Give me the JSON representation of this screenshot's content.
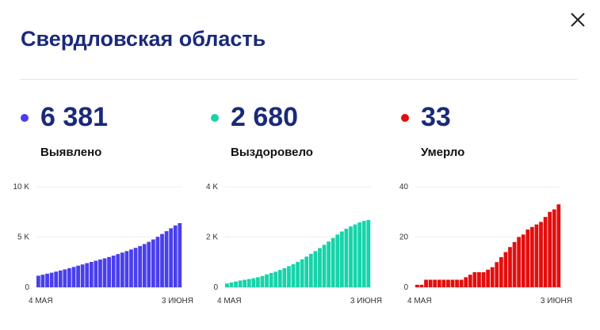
{
  "header": {
    "title": "Свердловская область"
  },
  "colors": {
    "detected": "#4a3fec",
    "recovered": "#16d3aa",
    "deaths": "#e30e0e",
    "title": "#1a2a7a"
  },
  "icons": {
    "close": "close-icon"
  },
  "stats": [
    {
      "value": "6 381",
      "label": "Выявлено",
      "color": "#4a3fec"
    },
    {
      "value": "2 680",
      "label": "Выздоровело",
      "color": "#16d3aa"
    },
    {
      "value": "33",
      "label": "Умерло",
      "color": "#e30e0e"
    }
  ],
  "chart_data": [
    {
      "type": "bar",
      "series_key": "detected",
      "color": "#4a3fec",
      "ylim": [
        0,
        10000
      ],
      "yticks": [
        {
          "v": 0,
          "label": "0"
        },
        {
          "v": 5000,
          "label": "5 K"
        },
        {
          "v": 10000,
          "label": "10 K"
        }
      ],
      "x_start_label": "4 МАЯ",
      "x_end_label": "3 ИЮНЯ",
      "values": [
        1150,
        1250,
        1350,
        1450,
        1560,
        1670,
        1780,
        1900,
        2020,
        2150,
        2270,
        2400,
        2520,
        2640,
        2760,
        2880,
        3010,
        3150,
        3300,
        3450,
        3600,
        3760,
        3920,
        4100,
        4300,
        4520,
        4760,
        5020,
        5300,
        5580,
        5870,
        6150,
        6381
      ]
    },
    {
      "type": "bar",
      "series_key": "recovered",
      "color": "#16d3aa",
      "ylim": [
        0,
        4000
      ],
      "yticks": [
        {
          "v": 0,
          "label": "0"
        },
        {
          "v": 2000,
          "label": "2 K"
        },
        {
          "v": 4000,
          "label": "4 K"
        }
      ],
      "x_start_label": "4 МАЯ",
      "x_end_label": "3 ИЮНЯ",
      "values": [
        150,
        190,
        230,
        270,
        300,
        330,
        360,
        400,
        450,
        510,
        570,
        620,
        690,
        760,
        840,
        920,
        1010,
        1110,
        1220,
        1330,
        1440,
        1560,
        1690,
        1820,
        1960,
        2100,
        2220,
        2330,
        2420,
        2500,
        2580,
        2640,
        2680
      ]
    },
    {
      "type": "bar",
      "series_key": "deaths",
      "color": "#e30e0e",
      "ylim": [
        0,
        40
      ],
      "yticks": [
        {
          "v": 0,
          "label": "0"
        },
        {
          "v": 20,
          "label": "20"
        },
        {
          "v": 40,
          "label": "40"
        }
      ],
      "x_start_label": "4 МАЯ",
      "x_end_label": "3 ИЮНЯ",
      "values": [
        1,
        1,
        3,
        3,
        3,
        3,
        3,
        3,
        3,
        3,
        3,
        4,
        5,
        6,
        6,
        6,
        7,
        8,
        10,
        12,
        14,
        16,
        18,
        20,
        21,
        23,
        24,
        25,
        26,
        28,
        30,
        31,
        33
      ]
    }
  ]
}
